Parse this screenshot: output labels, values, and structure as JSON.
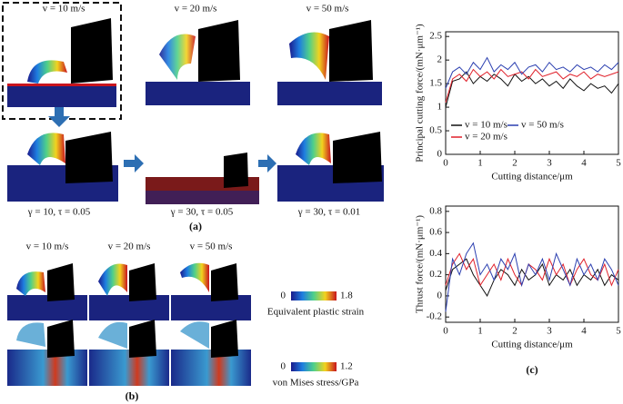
{
  "panel_a": {
    "top_labels": [
      "v = 10 m/s",
      "v = 20 m/s",
      "v = 50 m/s"
    ],
    "bottom_labels": [
      "γ = 10, τ = 0.05",
      "γ = 30, τ = 0.05",
      "γ = 30, τ = 0.01"
    ],
    "label": "(a)"
  },
  "panel_b": {
    "labels": [
      "v = 10 m/s",
      "v = 20 m/s",
      "v = 50 m/s"
    ],
    "colorbars": [
      {
        "min": 0,
        "max": 1.8,
        "title": "Equivalent plastic strain"
      },
      {
        "min": 0,
        "max": 1.2,
        "title": "von Mises stress/GPa"
      }
    ],
    "label": "(b)"
  },
  "chart_data": [
    {
      "type": "line",
      "ylabel": "Principal cutting force/(mN·μm⁻¹)",
      "xlabel": "Cutting distance/μm",
      "x": [
        0,
        0.2,
        0.4,
        0.6,
        0.8,
        1.0,
        1.2,
        1.4,
        1.6,
        1.8,
        2.0,
        2.2,
        2.4,
        2.6,
        2.8,
        3.0,
        3.2,
        3.4,
        3.6,
        3.8,
        4.0,
        4.2,
        4.4,
        4.6,
        4.8,
        5.0
      ],
      "series": [
        {
          "name": "v = 10 m/s",
          "color": "#111111",
          "values": [
            1.0,
            1.55,
            1.6,
            1.75,
            1.5,
            1.65,
            1.55,
            1.7,
            1.6,
            1.45,
            1.7,
            1.55,
            1.65,
            1.5,
            1.6,
            1.45,
            1.55,
            1.4,
            1.6,
            1.45,
            1.35,
            1.5,
            1.4,
            1.45,
            1.3,
            1.5
          ]
        },
        {
          "name": "v = 20 m/s",
          "color": "#e0202a",
          "values": [
            1.1,
            1.6,
            1.7,
            1.55,
            1.8,
            1.65,
            1.75,
            1.6,
            1.8,
            1.65,
            1.7,
            1.75,
            1.6,
            1.8,
            1.65,
            1.7,
            1.75,
            1.6,
            1.7,
            1.65,
            1.75,
            1.6,
            1.7,
            1.65,
            1.7,
            1.75
          ]
        },
        {
          "name": "v = 50 m/s",
          "color": "#2b3fb0",
          "values": [
            1.4,
            1.75,
            1.85,
            1.7,
            1.95,
            1.8,
            2.05,
            1.75,
            1.9,
            1.8,
            1.95,
            1.7,
            1.85,
            1.9,
            1.75,
            1.95,
            1.8,
            1.85,
            1.75,
            1.9,
            1.8,
            1.85,
            1.75,
            1.9,
            1.8,
            1.95
          ]
        }
      ],
      "xlim": [
        0,
        5
      ],
      "xticks": [
        0,
        1,
        2,
        3,
        4,
        5
      ],
      "ylim": [
        0,
        2.6
      ],
      "yticks": [
        0,
        0.5,
        1,
        1.5,
        2,
        2.5
      ],
      "legend": "lower left"
    },
    {
      "type": "line",
      "ylabel": "Thrust force/(mN·μm⁻¹)",
      "xlabel": "Cutting distance/μm",
      "panel_label": "(c)",
      "x": [
        0,
        0.2,
        0.4,
        0.6,
        0.8,
        1.0,
        1.2,
        1.4,
        1.6,
        1.8,
        2.0,
        2.2,
        2.4,
        2.6,
        2.8,
        3.0,
        3.2,
        3.4,
        3.6,
        3.8,
        4.0,
        4.2,
        4.4,
        4.6,
        4.8,
        5.0
      ],
      "series": [
        {
          "color": "#111111",
          "values": [
            0.05,
            0.25,
            0.3,
            0.35,
            0.2,
            0.1,
            0.0,
            0.15,
            0.25,
            0.2,
            0.1,
            0.25,
            0.15,
            0.2,
            0.3,
            0.1,
            0.2,
            0.15,
            0.25,
            0.1,
            0.2,
            0.15,
            0.25,
            0.1,
            0.2,
            0.15
          ]
        },
        {
          "color": "#e0202a",
          "values": [
            0.1,
            0.3,
            0.4,
            0.25,
            0.35,
            0.1,
            0.2,
            0.3,
            0.15,
            0.35,
            0.2,
            0.1,
            0.3,
            0.25,
            0.15,
            0.35,
            0.2,
            0.3,
            0.1,
            0.25,
            0.35,
            0.2,
            0.15,
            0.3,
            0.1,
            0.25
          ]
        },
        {
          "color": "#2b3fb0",
          "values": [
            -0.15,
            0.35,
            0.2,
            0.4,
            0.5,
            0.2,
            0.3,
            0.15,
            0.35,
            0.25,
            0.4,
            0.1,
            0.3,
            0.2,
            0.35,
            0.15,
            0.4,
            0.25,
            0.1,
            0.35,
            0.2,
            0.3,
            0.15,
            0.35,
            0.25,
            0.1
          ]
        }
      ],
      "xlim": [
        0,
        5
      ],
      "xticks": [
        0,
        1,
        2,
        3,
        4,
        5
      ],
      "ylim": [
        -0.25,
        0.85
      ],
      "yticks": [
        -0.2,
        0,
        0.2,
        0.4,
        0.6,
        0.8
      ]
    }
  ]
}
